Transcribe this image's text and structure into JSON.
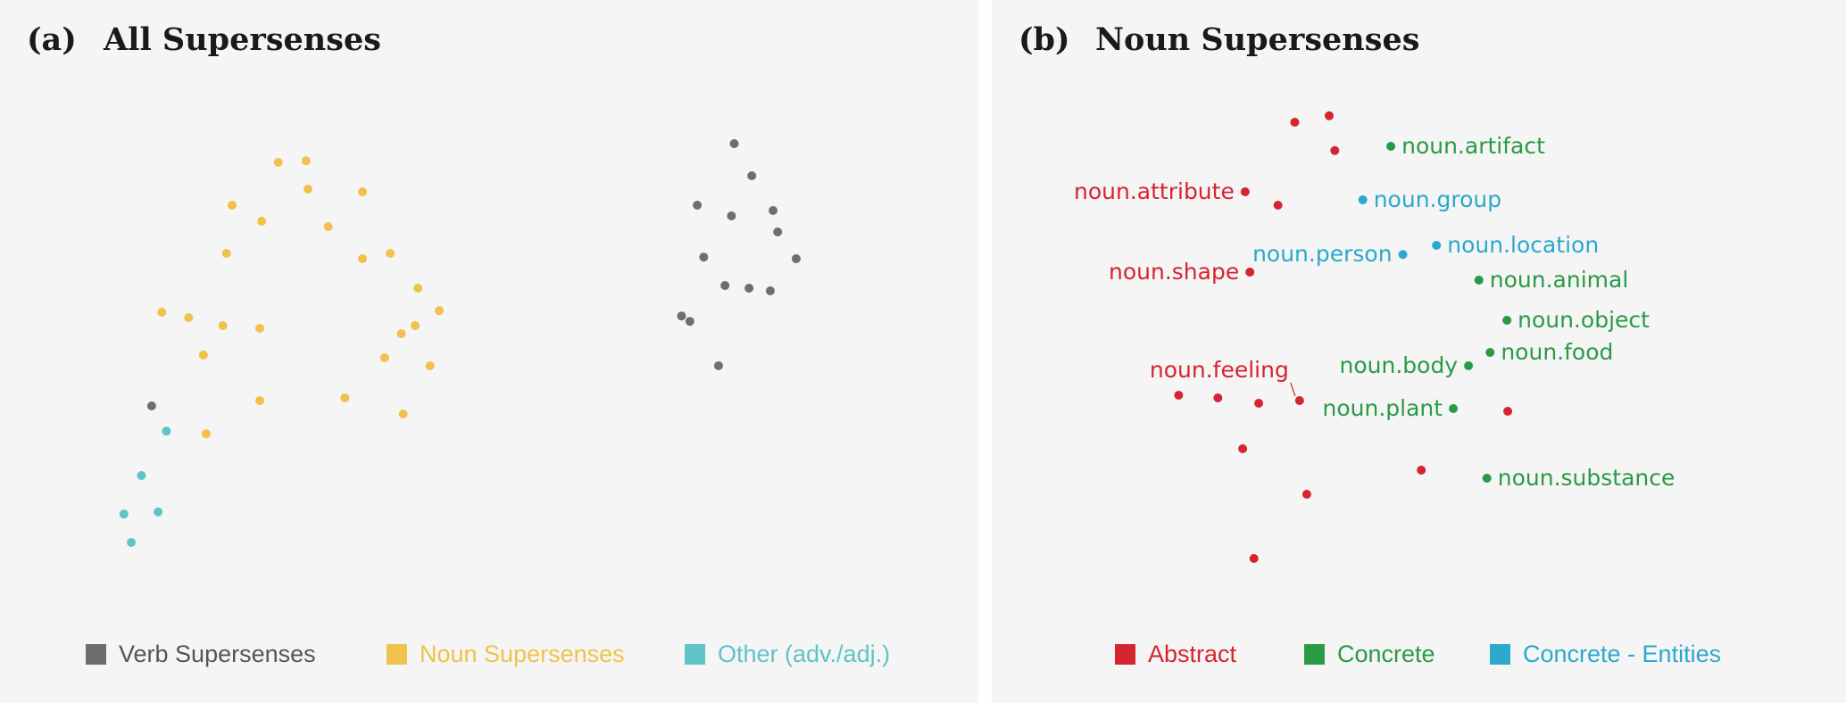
{
  "chart_data": [
    {
      "type": "scatter",
      "title": "(a)  All Supersenses",
      "panel_tag": "(a)",
      "panel_title": "All Supersenses",
      "xlabel": "",
      "ylabel": "",
      "grid": false,
      "legend_position": "bottom",
      "xlim": [
        0,
        100
      ],
      "ylim": [
        0,
        100
      ],
      "series": [
        {
          "name": "Verb Supersenses",
          "color": "#6e6e6e",
          "points": [
            {
              "x": 76.5,
              "y": 89.0
            },
            {
              "x": 78.4,
              "y": 83.0
            },
            {
              "x": 72.5,
              "y": 77.5
            },
            {
              "x": 76.2,
              "y": 75.5
            },
            {
              "x": 80.7,
              "y": 76.5
            },
            {
              "x": 81.2,
              "y": 72.5
            },
            {
              "x": 83.2,
              "y": 67.5
            },
            {
              "x": 73.2,
              "y": 67.8
            },
            {
              "x": 75.5,
              "y": 62.5
            },
            {
              "x": 78.1,
              "y": 62.0
            },
            {
              "x": 80.4,
              "y": 61.5
            },
            {
              "x": 70.8,
              "y": 56.8
            },
            {
              "x": 71.7,
              "y": 55.8
            },
            {
              "x": 74.8,
              "y": 47.5
            },
            {
              "x": 13.5,
              "y": 40.0
            }
          ]
        },
        {
          "name": "Noun Supersenses",
          "color": "#f0c24c",
          "points": [
            {
              "x": 27.2,
              "y": 85.5
            },
            {
              "x": 30.2,
              "y": 85.8
            },
            {
              "x": 30.4,
              "y": 80.5
            },
            {
              "x": 36.3,
              "y": 80.0
            },
            {
              "x": 22.2,
              "y": 77.5
            },
            {
              "x": 25.4,
              "y": 74.5
            },
            {
              "x": 32.6,
              "y": 73.5
            },
            {
              "x": 21.6,
              "y": 68.5
            },
            {
              "x": 36.3,
              "y": 67.5
            },
            {
              "x": 39.3,
              "y": 68.5
            },
            {
              "x": 42.3,
              "y": 62.0
            },
            {
              "x": 14.6,
              "y": 57.5
            },
            {
              "x": 17.5,
              "y": 56.5
            },
            {
              "x": 21.2,
              "y": 55.0
            },
            {
              "x": 25.2,
              "y": 54.5
            },
            {
              "x": 44.6,
              "y": 57.8
            },
            {
              "x": 42.0,
              "y": 55.0
            },
            {
              "x": 40.5,
              "y": 53.5
            },
            {
              "x": 19.1,
              "y": 49.5
            },
            {
              "x": 38.7,
              "y": 49.0
            },
            {
              "x": 43.6,
              "y": 47.5
            },
            {
              "x": 25.2,
              "y": 41.0
            },
            {
              "x": 34.4,
              "y": 41.5
            },
            {
              "x": 40.7,
              "y": 38.5
            },
            {
              "x": 19.4,
              "y": 34.8
            }
          ]
        },
        {
          "name": "Other (adv./adj.)",
          "color": "#5ec4c8",
          "points": [
            {
              "x": 15.1,
              "y": 35.3
            },
            {
              "x": 12.4,
              "y": 27.0
            },
            {
              "x": 10.5,
              "y": 19.8
            },
            {
              "x": 14.2,
              "y": 20.2
            },
            {
              "x": 11.3,
              "y": 14.5
            }
          ]
        }
      ]
    },
    {
      "type": "scatter",
      "title": "(b)  Noun Supersenses",
      "panel_tag": "(b)",
      "panel_title": "Noun Supersenses",
      "xlabel": "",
      "ylabel": "",
      "grid": false,
      "legend_position": "bottom",
      "xlim": [
        0,
        100
      ],
      "ylim": [
        0,
        100
      ],
      "series": [
        {
          "name": "Abstract",
          "color": "#d62430",
          "points": [
            {
              "x": 34.5,
              "y": 93.0,
              "label": ""
            },
            {
              "x": 38.8,
              "y": 94.2,
              "label": ""
            },
            {
              "x": 39.5,
              "y": 87.7,
              "label": ""
            },
            {
              "x": 28.3,
              "y": 80.0,
              "label": "noun.attribute"
            },
            {
              "x": 32.4,
              "y": 77.5,
              "label": ""
            },
            {
              "x": 28.9,
              "y": 65.0,
              "label": "noun.shape"
            },
            {
              "x": 35.1,
              "y": 41.0,
              "label": "noun.feeling"
            },
            {
              "x": 20.0,
              "y": 42.0,
              "label": ""
            },
            {
              "x": 24.9,
              "y": 41.5,
              "label": ""
            },
            {
              "x": 30.0,
              "y": 40.5,
              "label": ""
            },
            {
              "x": 61.1,
              "y": 39.0,
              "label": ""
            },
            {
              "x": 28.0,
              "y": 32.0,
              "label": ""
            },
            {
              "x": 50.3,
              "y": 28.0,
              "label": ""
            },
            {
              "x": 36.0,
              "y": 23.5,
              "label": ""
            },
            {
              "x": 29.4,
              "y": 11.5,
              "label": ""
            }
          ]
        },
        {
          "name": "Concrete",
          "color": "#2a9a45",
          "points": [
            {
              "x": 46.5,
              "y": 88.5,
              "label": "noun.artifact"
            },
            {
              "x": 57.5,
              "y": 63.5,
              "label": "noun.animal"
            },
            {
              "x": 61.0,
              "y": 56.0,
              "label": "noun.object"
            },
            {
              "x": 58.9,
              "y": 50.0,
              "label": "noun.food"
            },
            {
              "x": 56.2,
              "y": 47.5,
              "label": "noun.body"
            },
            {
              "x": 54.3,
              "y": 39.5,
              "label": "noun.plant"
            },
            {
              "x": 58.5,
              "y": 26.5,
              "label": "noun.substance"
            }
          ]
        },
        {
          "name": "Concrete - Entities",
          "color": "#2ba8cc",
          "points": [
            {
              "x": 43.0,
              "y": 78.5,
              "label": "noun.group"
            },
            {
              "x": 52.2,
              "y": 70.0,
              "label": "noun.location"
            },
            {
              "x": 48.0,
              "y": 68.3,
              "label": "noun.person"
            }
          ]
        }
      ]
    }
  ]
}
